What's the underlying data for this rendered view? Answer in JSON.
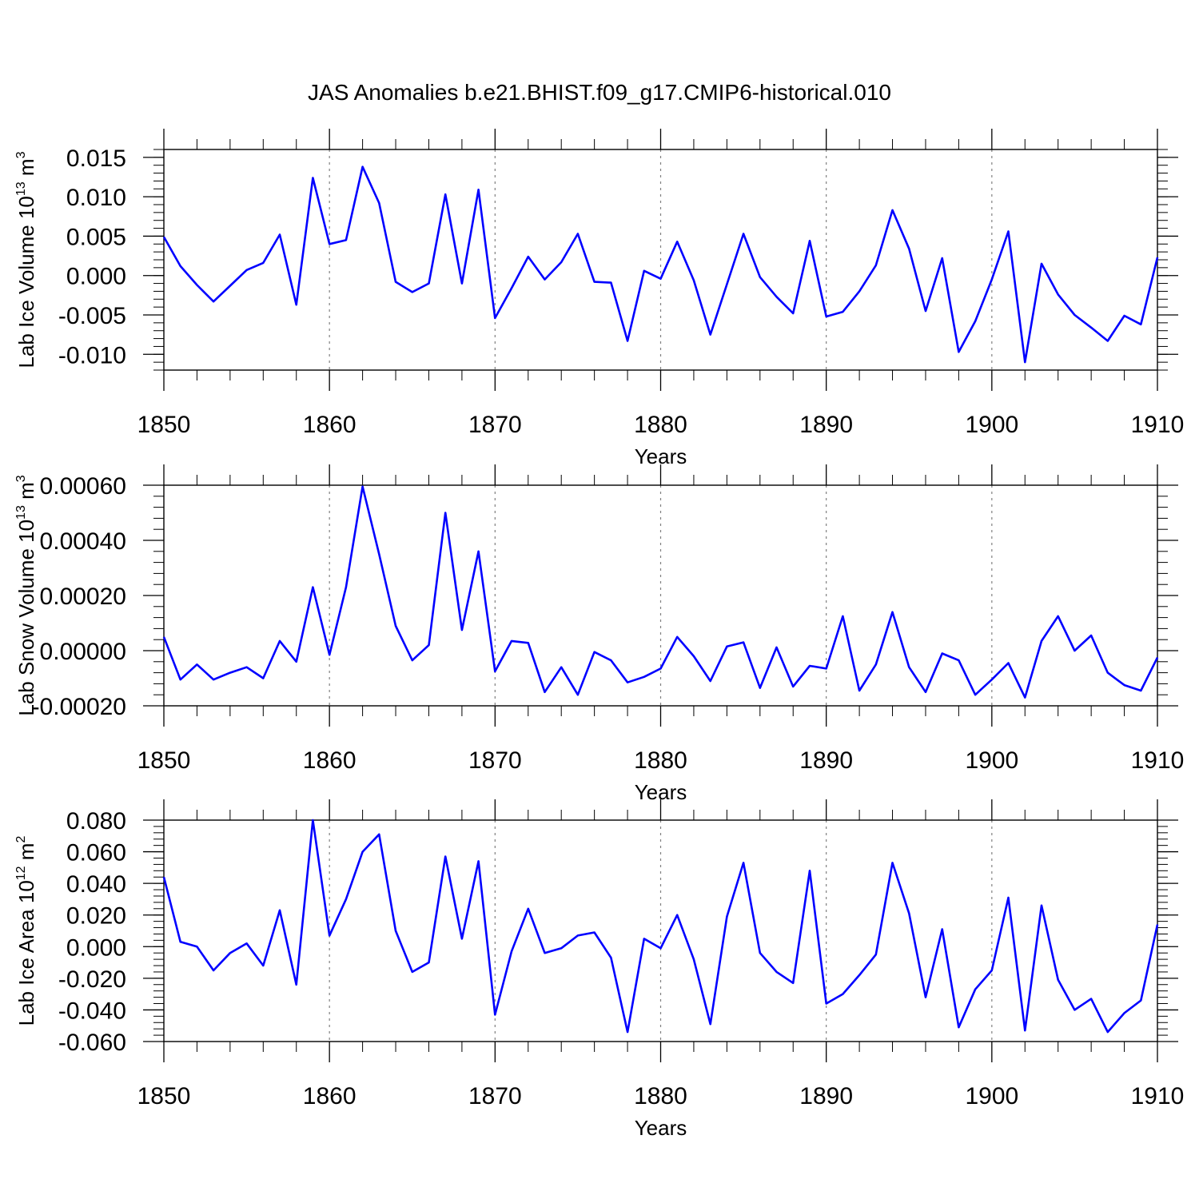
{
  "title": "JAS Anomalies b.e21.BHIST.f09_g17.CMIP6-historical.010",
  "line_color": "#0000ff",
  "grid_color": "#808080",
  "chart_data": [
    {
      "type": "line",
      "name": "lab-ice-volume",
      "ylabel_main": "Lab Ice Volume 10",
      "ylabel_exp": "13",
      "ylabel_unit": " m",
      "ylabel_unit_exp": "3",
      "xlabel": "Years",
      "xlim": [
        1850,
        1910
      ],
      "ylim": [
        -0.012,
        0.016
      ],
      "yticks": [
        -0.01,
        -0.005,
        0.0,
        0.005,
        0.01,
        0.015
      ],
      "ytick_labels": [
        "-0.010",
        "-0.005",
        "0.000",
        "0.005",
        "0.010",
        "0.015"
      ],
      "xticks": [
        1850,
        1860,
        1870,
        1880,
        1890,
        1900,
        1910
      ],
      "xtick_labels": [
        "1850",
        "1860",
        "1870",
        "1880",
        "1890",
        "1900",
        "1910"
      ],
      "series": [
        {
          "name": "Lab Ice Volume",
          "values": [
            0.0049,
            0.0012,
            -0.0012,
            -0.0033,
            -0.0013,
            0.0007,
            0.0016,
            0.0052,
            -0.0037,
            0.0124,
            0.004,
            0.0045,
            0.0138,
            0.0092,
            -0.0008,
            -0.0021,
            -0.001,
            0.0103,
            -0.001,
            0.0109,
            -0.0054,
            -0.0016,
            0.0024,
            -0.0005,
            0.0017,
            0.0053,
            -0.0008,
            -0.0009,
            -0.0083,
            0.0006,
            -0.0004,
            0.0043,
            -0.0006,
            -0.0075,
            -0.0011,
            0.0053,
            -0.0002,
            -0.0027,
            -0.0048,
            0.0044,
            -0.0052,
            -0.0046,
            -0.002,
            0.0013,
            0.0083,
            0.0034,
            -0.0045,
            0.0022,
            -0.0097,
            -0.0058,
            -0.0005,
            0.0056,
            -0.011,
            0.0015,
            -0.0024,
            -0.005,
            -0.0066,
            -0.0083,
            -0.0051,
            -0.0062,
            0.0023
          ]
        }
      ]
    },
    {
      "type": "line",
      "name": "lab-snow-volume",
      "ylabel_main": "Lab Snow Volume 10",
      "ylabel_exp": "13",
      "ylabel_unit": " m",
      "ylabel_unit_exp": "3",
      "xlabel": "Years",
      "xlim": [
        1850,
        1910
      ],
      "ylim": [
        -0.0002,
        0.0006
      ],
      "yticks": [
        -0.0002,
        0.0,
        0.0002,
        0.0004,
        0.0006
      ],
      "ytick_labels": [
        "-0.00020",
        "0.00000",
        "0.00020",
        "0.00040",
        "0.00060"
      ],
      "xticks": [
        1850,
        1860,
        1870,
        1880,
        1890,
        1900,
        1910
      ],
      "xtick_labels": [
        "1850",
        "1860",
        "1870",
        "1880",
        "1890",
        "1900",
        "1910"
      ],
      "series": [
        {
          "name": "Lab Snow Volume",
          "values": [
            5e-05,
            -0.000105,
            -5e-05,
            -0.000105,
            -8e-05,
            -6e-05,
            -0.0001,
            3.5e-05,
            -4e-05,
            0.00023,
            -1.5e-05,
            0.00023,
            0.000595,
            0.00035,
            9e-05,
            -3.5e-05,
            2e-05,
            0.0005,
            7.5e-05,
            0.00036,
            -7.5e-05,
            3.5e-05,
            2.8e-05,
            -0.00015,
            -6e-05,
            -0.00016,
            -5e-06,
            -3.5e-05,
            -0.000115,
            -9.5e-05,
            -6.5e-05,
            5e-05,
            -2e-05,
            -0.00011,
            1.5e-05,
            3e-05,
            -0.000135,
            1.2e-05,
            -0.00013,
            -5.5e-05,
            -6.5e-05,
            0.000125,
            -0.000145,
            -5e-05,
            0.00014,
            -6e-05,
            -0.00015,
            -1e-05,
            -3.5e-05,
            -0.00016,
            -0.000105,
            -4.5e-05,
            -0.00017,
            3.5e-05,
            0.000125,
            0.0,
            5.5e-05,
            -8e-05,
            -0.000125,
            -0.000145,
            -2.5e-05
          ]
        }
      ]
    },
    {
      "type": "line",
      "name": "lab-ice-area",
      "ylabel_main": "Lab Ice Area 10",
      "ylabel_exp": "12",
      "ylabel_unit": " m",
      "ylabel_unit_exp": "2",
      "xlabel": "Years",
      "xlim": [
        1850,
        1910
      ],
      "ylim": [
        -0.06,
        0.08
      ],
      "yticks": [
        -0.06,
        -0.04,
        -0.02,
        0.0,
        0.02,
        0.04,
        0.06,
        0.08
      ],
      "ytick_labels": [
        "-0.060",
        "-0.040",
        "-0.020",
        "0.000",
        "0.020",
        "0.040",
        "0.060",
        "0.080"
      ],
      "xticks": [
        1850,
        1860,
        1870,
        1880,
        1890,
        1900,
        1910
      ],
      "xtick_labels": [
        "1850",
        "1860",
        "1870",
        "1880",
        "1890",
        "1900",
        "1910"
      ],
      "series": [
        {
          "name": "Lab Ice Area",
          "values": [
            0.044,
            0.003,
            0.0,
            -0.015,
            -0.004,
            0.002,
            -0.012,
            0.023,
            -0.024,
            0.08,
            0.007,
            0.03,
            0.06,
            0.071,
            0.01,
            -0.016,
            -0.01,
            0.057,
            0.005,
            0.054,
            -0.043,
            -0.003,
            0.024,
            -0.004,
            -0.001,
            0.007,
            0.009,
            -0.007,
            -0.054,
            0.005,
            -0.001,
            0.02,
            -0.008,
            -0.049,
            0.019,
            0.053,
            -0.004,
            -0.016,
            -0.023,
            0.048,
            -0.036,
            -0.03,
            -0.018,
            -0.005,
            0.053,
            0.021,
            -0.032,
            0.011,
            -0.051,
            -0.027,
            -0.015,
            0.031,
            -0.053,
            0.026,
            -0.021,
            -0.04,
            -0.033,
            -0.054,
            -0.042,
            -0.034,
            0.014
          ]
        }
      ]
    }
  ]
}
